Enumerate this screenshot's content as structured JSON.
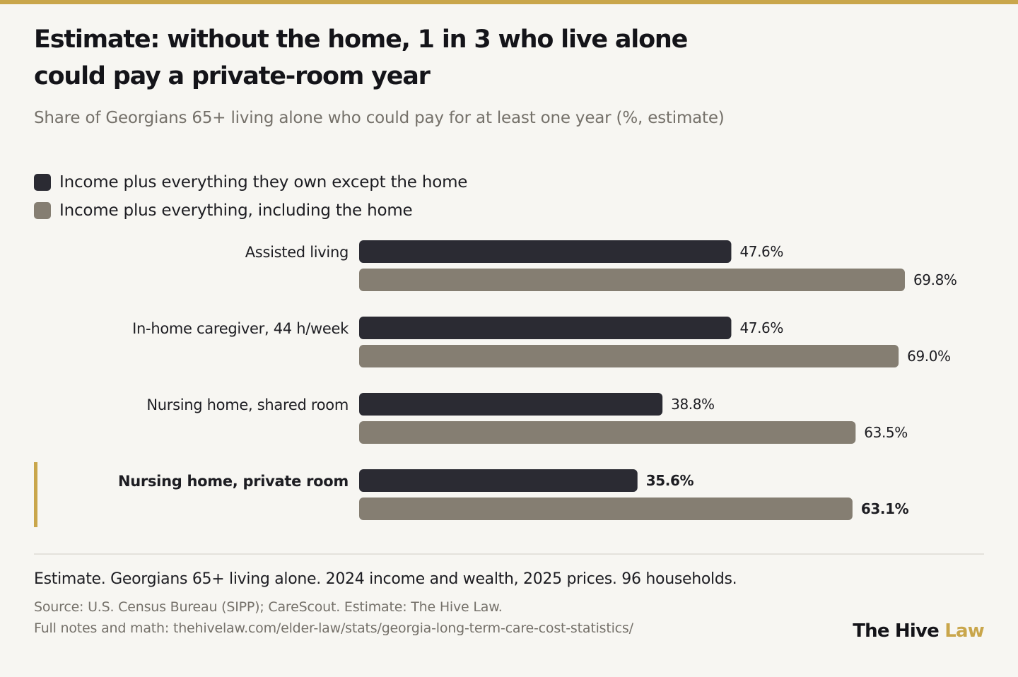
{
  "title": "Estimate: without the home, 1 in 3 who live alone could pay a private-room year",
  "subtitle": "Share of Georgians 65+ living alone who could pay for at least one year (%, estimate)",
  "legend": [
    {
      "label": "Income plus everything they own except the home",
      "color": "#2b2b33"
    },
    {
      "label": "Income plus everything, including the home",
      "color": "#857e72"
    }
  ],
  "chart_data": {
    "type": "bar",
    "orientation": "horizontal",
    "title": "Estimate: without the home, 1 in 3 who live alone could pay a private-room year",
    "subtitle": "Share of Georgians 65+ living alone who could pay for at least one year (%, estimate)",
    "categories": [
      "Assisted living",
      "In-home caregiver, 44 h/week",
      "Nursing home, shared room",
      "Nursing home, private room"
    ],
    "highlight_category": "Nursing home, private room",
    "series": [
      {
        "name": "Income plus everything they own except the home",
        "values": [
          47.6,
          47.6,
          38.8,
          35.6
        ],
        "labels": [
          "47.6%",
          "47.6%",
          "38.8%",
          "35.6%"
        ],
        "color": "#2b2b33"
      },
      {
        "name": "Income plus everything, including the home",
        "values": [
          69.8,
          69.0,
          63.5,
          63.1
        ],
        "labels": [
          "69.8%",
          "69.0%",
          "63.5%",
          "63.1%"
        ],
        "color": "#857e72"
      }
    ],
    "xlim": [
      0,
      100
    ],
    "grid": false,
    "legend_position": "top-left",
    "highlight_color": "#c9a64b"
  },
  "footer": {
    "note": "Estimate. Georgians 65+ living alone. 2024 income and wealth, 2025 prices. 96 households.",
    "source_line1": "Source: U.S. Census Bureau (SIPP); CareScout. Estimate: The Hive Law.",
    "source_line2": "Full notes and math: thehivelaw.com/elder-law/stats/georgia-long-term-care-cost-statistics/"
  },
  "brand": {
    "name": "The Hive",
    "accent": "Law"
  }
}
